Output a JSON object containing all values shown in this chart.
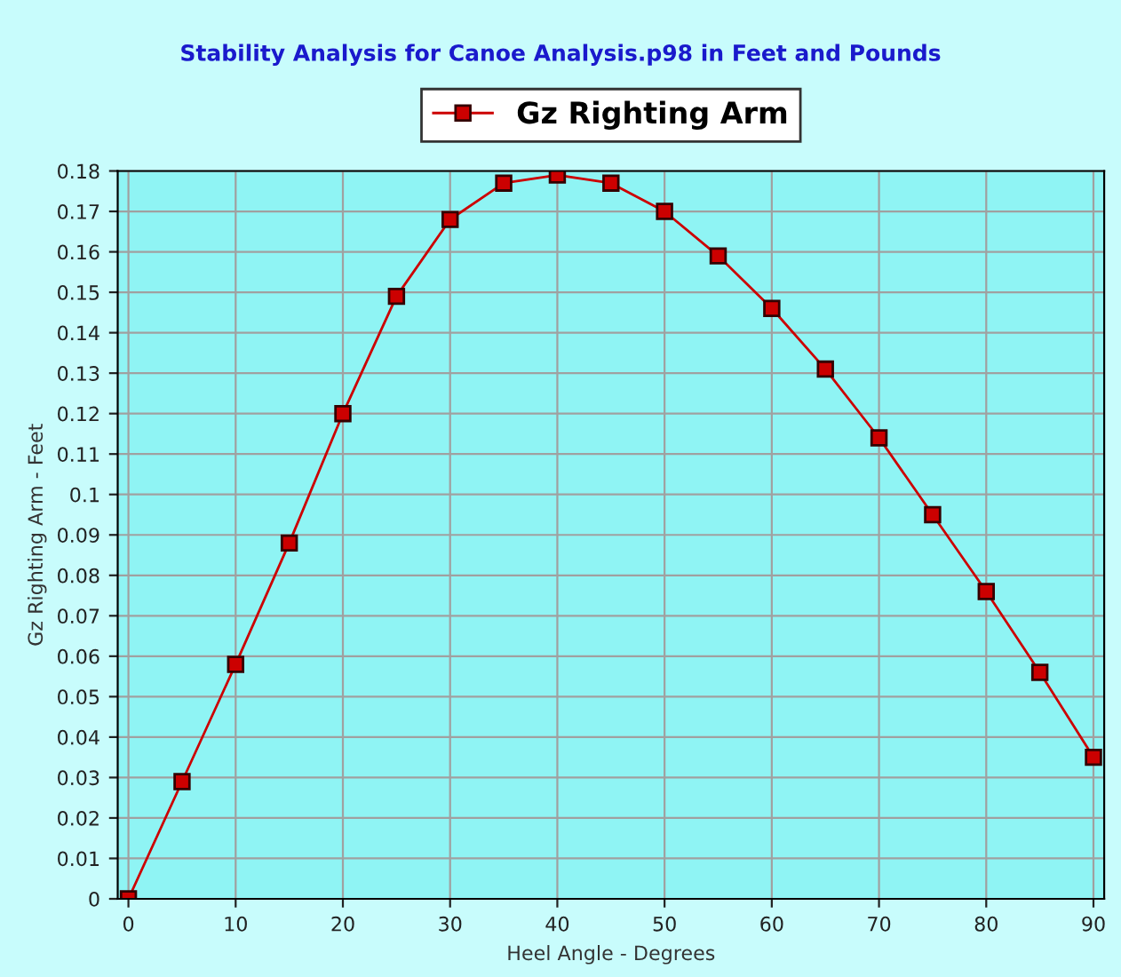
{
  "chart_data": {
    "type": "line",
    "title": "Stability Analysis for Canoe Analysis.p98 in Feet and Pounds",
    "xlabel": "Heel Angle - Degrees",
    "ylabel": "Gz Righting Arm - Feet",
    "x": [
      0,
      5,
      10,
      15,
      20,
      25,
      30,
      35,
      40,
      45,
      50,
      55,
      60,
      65,
      70,
      75,
      80,
      85,
      90
    ],
    "series": [
      {
        "name": "Gz Righting Arm",
        "color": "#cc0000",
        "values": [
          0,
          0.029,
          0.058,
          0.088,
          0.12,
          0.149,
          0.168,
          0.177,
          0.179,
          0.177,
          0.17,
          0.159,
          0.146,
          0.131,
          0.114,
          0.095,
          0.076,
          0.056,
          0.035
        ]
      }
    ],
    "xlim": [
      -1,
      91
    ],
    "ylim": [
      0,
      0.18
    ],
    "xticks": [
      0,
      10,
      20,
      30,
      40,
      50,
      60,
      70,
      80,
      90
    ],
    "yticks": [
      0,
      0.01,
      0.02,
      0.03,
      0.04,
      0.05,
      0.06,
      0.07,
      0.08,
      0.09,
      0.1,
      0.11,
      0.12,
      0.13,
      0.14,
      0.15,
      0.16,
      0.17,
      0.18
    ],
    "grid": true,
    "legend": "top",
    "marker": "square",
    "line_style": "solid"
  }
}
